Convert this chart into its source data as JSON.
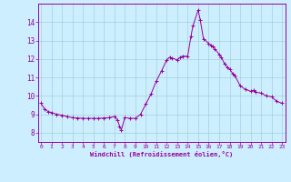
{
  "xlabel": "Windchill (Refroidissement éolien,°C)",
  "background_color": "#cceeff",
  "line_color": "#990099",
  "marker_color": "#990099",
  "xlim": [
    -0.3,
    23.3
  ],
  "ylim": [
    7.5,
    15.0
  ],
  "yticks": [
    8,
    9,
    10,
    11,
    12,
    13,
    14
  ],
  "xticks": [
    0,
    1,
    2,
    3,
    4,
    5,
    6,
    7,
    8,
    9,
    10,
    11,
    12,
    13,
    14,
    15,
    16,
    17,
    18,
    19,
    20,
    21,
    22,
    23
  ],
  "x": [
    0,
    0.33,
    0.67,
    1,
    1.5,
    2,
    2.5,
    3,
    3.5,
    4,
    4.5,
    5,
    5.5,
    6,
    6.5,
    7,
    7.3,
    7.5,
    7.67,
    8,
    8.5,
    9,
    9.5,
    10,
    10.5,
    11,
    11.5,
    12,
    12.3,
    12.5,
    13,
    13.3,
    13.5,
    14,
    14.3,
    14.5,
    15,
    15.2,
    15.5,
    16,
    16.2,
    16.4,
    16.6,
    17,
    17.2,
    17.5,
    17.8,
    18,
    18.3,
    18.5,
    19,
    19.5,
    20,
    20.3,
    20.5,
    21,
    21.5,
    22,
    22.5,
    23
  ],
  "y": [
    9.6,
    9.3,
    9.15,
    9.1,
    9.0,
    8.95,
    8.88,
    8.82,
    8.8,
    8.78,
    8.78,
    8.78,
    8.78,
    8.8,
    8.82,
    8.88,
    8.7,
    8.35,
    8.15,
    8.82,
    8.78,
    8.78,
    9.0,
    9.55,
    10.1,
    10.8,
    11.35,
    11.95,
    12.1,
    12.05,
    11.95,
    12.1,
    12.15,
    12.15,
    13.2,
    13.8,
    14.65,
    14.1,
    13.1,
    12.85,
    12.75,
    12.7,
    12.55,
    12.25,
    12.1,
    11.75,
    11.55,
    11.45,
    11.2,
    11.1,
    10.55,
    10.35,
    10.25,
    10.3,
    10.2,
    10.15,
    10.0,
    9.95,
    9.7,
    9.6
  ]
}
